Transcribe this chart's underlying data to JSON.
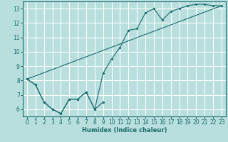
{
  "xlabel": "Humidex (Indice chaleur)",
  "bg_color": "#b8dede",
  "grid_color": "#ffffff",
  "line_color": "#1a6b6b",
  "xlim": [
    -0.5,
    23.5
  ],
  "ylim": [
    5.5,
    13.5
  ],
  "yticks": [
    6,
    7,
    8,
    9,
    10,
    11,
    12,
    13
  ],
  "xticks": [
    0,
    1,
    2,
    3,
    4,
    5,
    6,
    7,
    8,
    9,
    10,
    11,
    12,
    13,
    14,
    15,
    16,
    17,
    18,
    19,
    20,
    21,
    22,
    23
  ],
  "main_line_x": [
    0,
    1,
    2,
    3,
    4,
    5,
    6,
    7,
    8,
    9,
    10,
    11,
    12,
    13,
    14,
    15,
    16,
    17,
    18,
    19,
    20,
    21,
    22,
    23
  ],
  "main_line_y": [
    8.1,
    7.7,
    6.5,
    6.0,
    5.7,
    6.7,
    6.7,
    7.2,
    6.0,
    8.5,
    9.5,
    10.3,
    11.5,
    11.6,
    12.7,
    13.0,
    12.2,
    12.8,
    13.0,
    13.2,
    13.3,
    13.3,
    13.2,
    13.2
  ],
  "lower_line_x": [
    0,
    1,
    2,
    3,
    4,
    5,
    6,
    7,
    8,
    9
  ],
  "lower_line_y": [
    8.1,
    7.7,
    6.5,
    6.0,
    5.7,
    6.7,
    6.7,
    7.2,
    6.0,
    6.5
  ],
  "straight_line_x": [
    0,
    23
  ],
  "straight_line_y": [
    8.1,
    13.2
  ],
  "marker_x": [
    0,
    1,
    2,
    3,
    4,
    5,
    6,
    7,
    8,
    9,
    10,
    11,
    12,
    13,
    14,
    15,
    16,
    17,
    18,
    19,
    20,
    21,
    22,
    23
  ],
  "marker_y": [
    8.1,
    7.7,
    6.5,
    6.0,
    5.7,
    6.7,
    6.7,
    7.2,
    6.0,
    8.5,
    9.5,
    10.3,
    11.5,
    11.6,
    12.7,
    13.0,
    12.2,
    12.8,
    13.0,
    13.2,
    13.3,
    13.3,
    13.2,
    13.2
  ],
  "lower_marker_x": [
    0,
    1,
    2,
    3,
    4,
    5,
    6,
    7,
    8,
    9
  ],
  "lower_marker_y": [
    8.1,
    7.7,
    6.5,
    6.0,
    5.7,
    6.7,
    6.7,
    7.2,
    6.0,
    6.5
  ],
  "xlabel_fontsize": 6,
  "tick_fontsize": 5.5
}
